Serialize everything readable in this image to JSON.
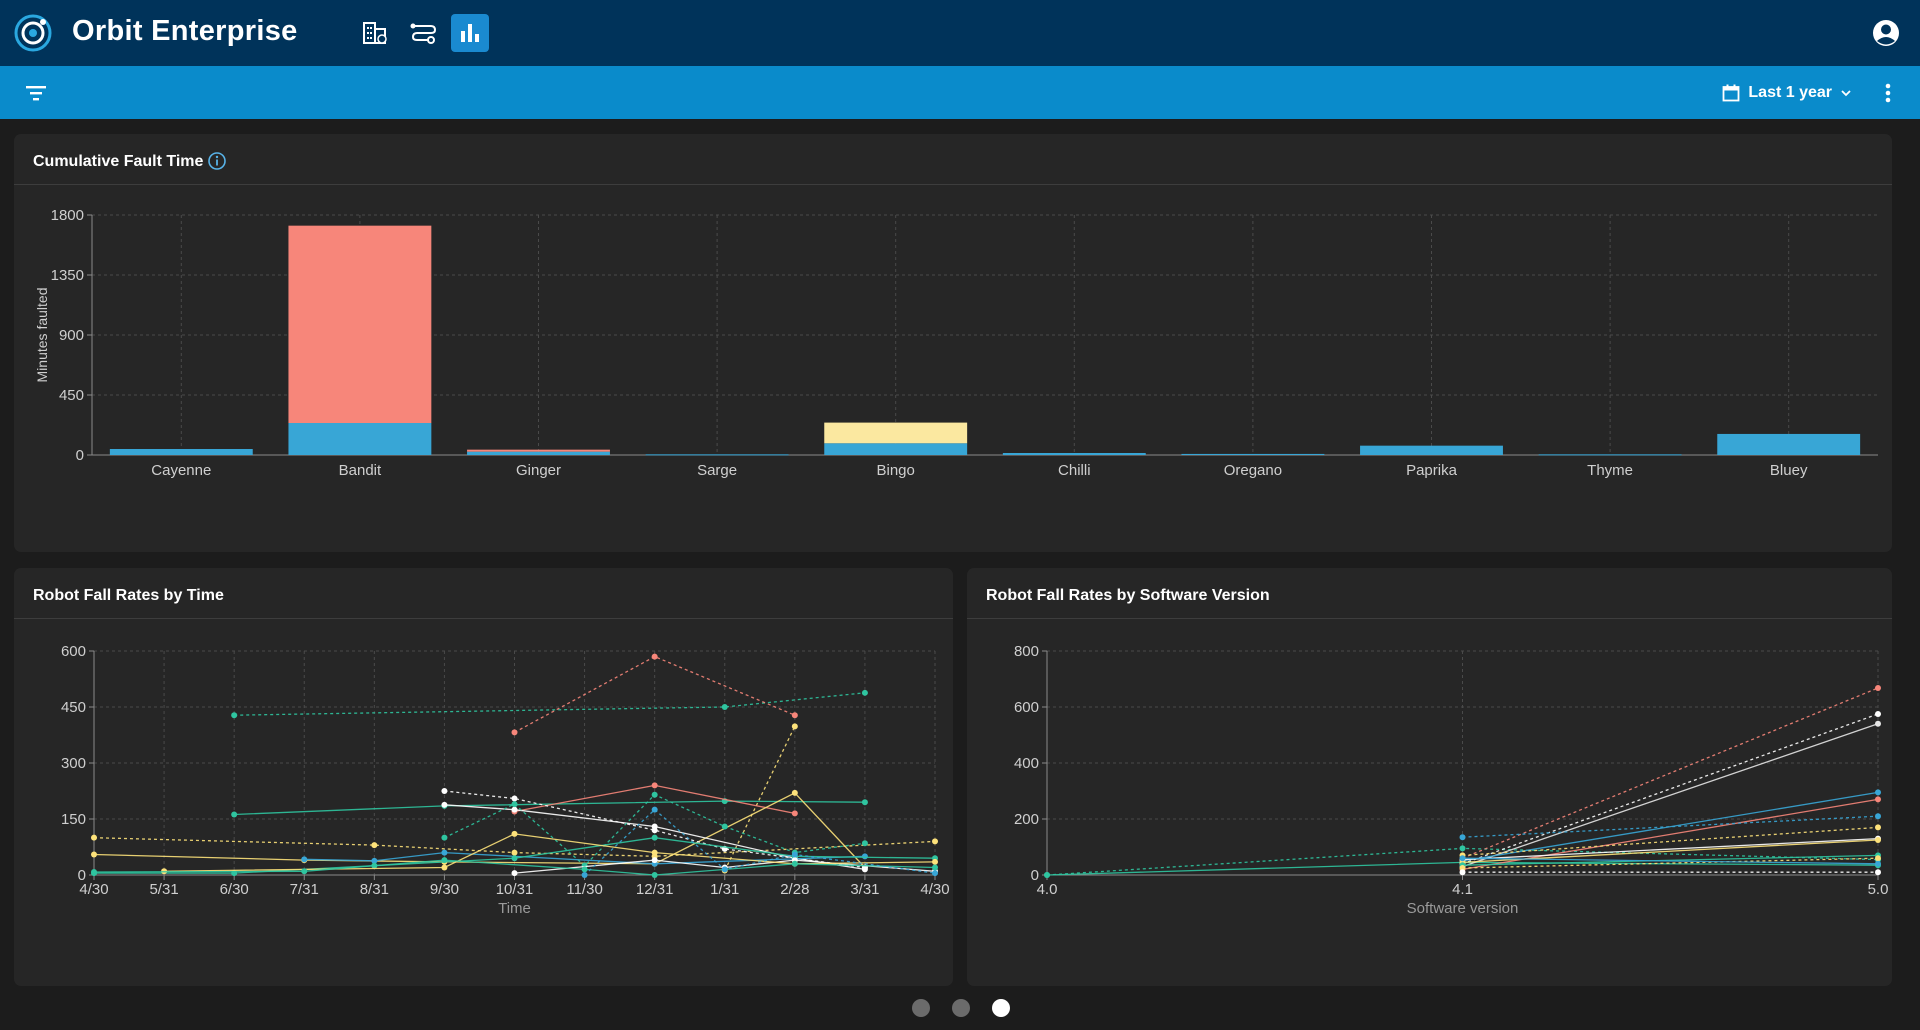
{
  "header": {
    "app_title": "Orbit Enterprise"
  },
  "toolbar": {
    "date_range": "Last 1 year"
  },
  "icons": {
    "logo": "orbit-logo-icon",
    "nav": [
      "buildings-icon",
      "route-icon",
      "bar-chart-icon"
    ],
    "account": "account-circle-icon",
    "filter": "filter-icon",
    "calendar": "calendar-icon",
    "chevron": "chevron-down-icon",
    "more": "more-vert-icon",
    "info": "info-icon"
  },
  "colors": {
    "header": "#00335a",
    "subbar": "#0a8bcb",
    "active_nav": "#1a8ad0"
  },
  "cards": {
    "fault": {
      "title": "Cumulative Fault Time"
    },
    "fall_time": {
      "title": "Robot Fall Rates by Time"
    },
    "fall_version": {
      "title": "Robot Fall Rates by Software Version"
    }
  },
  "pagination": {
    "pages": 3,
    "active": 3
  },
  "chart_data": [
    {
      "type": "bar",
      "stacked": true,
      "title": "Cumulative Fault Time",
      "xlabel": "",
      "ylabel": "Minutes faulted",
      "ylim": [
        0,
        1800
      ],
      "yticks": [
        0,
        450,
        900,
        1350,
        1800
      ],
      "grid": true,
      "categories": [
        "Cayenne",
        "Bandit",
        "Ginger",
        "Sarge",
        "Bingo",
        "Chilli",
        "Oregano",
        "Paprika",
        "Thyme",
        "Bluey"
      ],
      "series": [
        {
          "color": "#38a6d6",
          "values": [
            45,
            240,
            25,
            5,
            88,
            15,
            8,
            70,
            5,
            158
          ]
        },
        {
          "color": "#f7867a",
          "values": [
            0,
            1480,
            15,
            0,
            0,
            0,
            0,
            0,
            0,
            0
          ]
        },
        {
          "color": "#fbe8a0",
          "values": [
            0,
            0,
            0,
            0,
            155,
            0,
            0,
            0,
            0,
            0
          ]
        }
      ]
    },
    {
      "type": "line",
      "title": "Robot Fall Rates by Time",
      "xlabel": "Time",
      "ylabel": "",
      "x": [
        "4/30",
        "5/31",
        "6/30",
        "7/31",
        "8/31",
        "9/30",
        "10/31",
        "11/30",
        "12/31",
        "1/31",
        "2/28",
        "3/31",
        "4/30"
      ],
      "ylim": [
        0,
        600
      ],
      "yticks": [
        0,
        150,
        300,
        450,
        600
      ],
      "grid": true,
      "series": [
        {
          "color": "#2fc5a0",
          "dashed": true,
          "points": [
            [
              2,
              428
            ],
            [
              9,
              450
            ],
            [
              11,
              488
            ]
          ]
        },
        {
          "color": "#f7867a",
          "dashed": true,
          "points": [
            [
              6,
              382
            ],
            [
              8,
              585
            ],
            [
              10,
              428
            ]
          ]
        },
        {
          "color": "#fde27a",
          "dashed": true,
          "points": [
            [
              9,
              12
            ],
            [
              10,
              398
            ]
          ]
        },
        {
          "color": "#2fc5a0",
          "dashed": false,
          "points": [
            [
              2,
              162
            ],
            [
              5,
              185
            ],
            [
              9,
              198
            ],
            [
              11,
              195
            ]
          ]
        },
        {
          "color": "#f7867a",
          "dashed": false,
          "points": [
            [
              6,
              170
            ],
            [
              8,
              240
            ],
            [
              10,
              165
            ]
          ]
        },
        {
          "color": "#fde27a",
          "dashed": false,
          "points": [
            [
              0,
              55
            ],
            [
              3,
              40
            ],
            [
              5,
              35
            ],
            [
              8,
              30
            ],
            [
              10,
              220
            ],
            [
              11,
              20
            ]
          ]
        },
        {
          "color": "#fde27a",
          "dashed": true,
          "points": [
            [
              0,
              100
            ],
            [
              4,
              80
            ],
            [
              6,
              60
            ],
            [
              8,
              50
            ],
            [
              12,
              90
            ]
          ]
        },
        {
          "color": "#ffffff",
          "dashed": true,
          "points": [
            [
              5,
              225
            ],
            [
              6,
              205
            ],
            [
              8,
              120
            ],
            [
              9,
              70
            ],
            [
              11,
              20
            ]
          ]
        },
        {
          "color": "#ffffff",
          "dashed": false,
          "points": [
            [
              5,
              188
            ],
            [
              6,
              175
            ],
            [
              8,
              130
            ],
            [
              10,
              45
            ],
            [
              11,
              15
            ]
          ]
        },
        {
          "color": "#38a6d6",
          "dashed": false,
          "points": [
            [
              3,
              42
            ],
            [
              4,
              38
            ],
            [
              5,
              60
            ],
            [
              8,
              30
            ],
            [
              11,
              50
            ]
          ]
        },
        {
          "color": "#2fc5a0",
          "dashed": false,
          "points": [
            [
              0,
              5
            ],
            [
              2,
              5
            ],
            [
              4,
              25
            ],
            [
              6,
              45
            ],
            [
              8,
              100
            ],
            [
              10,
              50
            ],
            [
              12,
              45
            ]
          ]
        },
        {
          "color": "#2fc5a0",
          "dashed": true,
          "points": [
            [
              5,
              100
            ],
            [
              6,
              190
            ],
            [
              7,
              25
            ],
            [
              8,
              215
            ],
            [
              9,
              130
            ],
            [
              10,
              60
            ],
            [
              11,
              85
            ]
          ]
        },
        {
          "color": "#ffffff",
          "dashed": false,
          "points": [
            [
              6,
              5
            ],
            [
              8,
              40
            ],
            [
              9,
              20
            ],
            [
              10,
              40
            ],
            [
              12,
              10
            ]
          ]
        },
        {
          "color": "#fde27a",
          "dashed": false,
          "points": [
            [
              1,
              10
            ],
            [
              5,
              20
            ],
            [
              6,
              110
            ],
            [
              8,
              60
            ],
            [
              10,
              30
            ],
            [
              12,
              35
            ]
          ]
        },
        {
          "color": "#2fc5a0",
          "dashed": false,
          "points": [
            [
              0,
              8
            ],
            [
              3,
              10
            ],
            [
              5,
              40
            ],
            [
              7,
              15
            ],
            [
              8,
              0
            ],
            [
              10,
              30
            ],
            [
              12,
              20
            ]
          ]
        },
        {
          "color": "#38a6d6",
          "dashed": true,
          "points": [
            [
              7,
              0
            ],
            [
              8,
              175
            ],
            [
              9,
              15
            ],
            [
              10,
              55
            ],
            [
              12,
              5
            ]
          ]
        }
      ]
    },
    {
      "type": "line",
      "title": "Robot Fall Rates by Software Version",
      "xlabel": "Software version",
      "ylabel": "",
      "x": [
        "4.0",
        "4.1",
        "5.0"
      ],
      "ylim": [
        0,
        800
      ],
      "yticks": [
        0,
        200,
        400,
        600,
        800
      ],
      "grid": true,
      "series": [
        {
          "color": "#2fc5a0",
          "dashed": false,
          "points": [
            [
              0,
              0
            ],
            [
              1,
              45
            ],
            [
              2,
              35
            ]
          ]
        },
        {
          "color": "#2fc5a0",
          "dashed": true,
          "points": [
            [
              0,
              0
            ],
            [
              1,
              95
            ],
            [
              2,
              55
            ]
          ]
        },
        {
          "color": "#f7867a",
          "dashed": true,
          "points": [
            [
              1,
              60
            ],
            [
              2,
              668
            ]
          ]
        },
        {
          "color": "#ffffff",
          "dashed": true,
          "points": [
            [
              1,
              40
            ],
            [
              2,
              575
            ]
          ]
        },
        {
          "color": "#e6e6e6",
          "dashed": false,
          "points": [
            [
              1,
              30
            ],
            [
              2,
              540
            ]
          ]
        },
        {
          "color": "#38a6d6",
          "dashed": false,
          "points": [
            [
              1,
              50
            ],
            [
              2,
              295
            ]
          ]
        },
        {
          "color": "#f7867a",
          "dashed": false,
          "points": [
            [
              1,
              20
            ],
            [
              2,
              270
            ]
          ]
        },
        {
          "color": "#38a6d6",
          "dashed": true,
          "points": [
            [
              1,
              135
            ],
            [
              2,
              210
            ]
          ]
        },
        {
          "color": "#fde27a",
          "dashed": true,
          "points": [
            [
              1,
              70
            ],
            [
              2,
              170
            ]
          ]
        },
        {
          "color": "#ffffff",
          "dashed": false,
          "points": [
            [
              1,
              55
            ],
            [
              2,
              130
            ]
          ]
        },
        {
          "color": "#fde27a",
          "dashed": false,
          "points": [
            [
              1,
              45
            ],
            [
              2,
              125
            ]
          ]
        },
        {
          "color": "#2fc5a0",
          "dashed": false,
          "points": [
            [
              1,
              35
            ],
            [
              2,
              70
            ]
          ]
        },
        {
          "color": "#fde27a",
          "dashed": true,
          "points": [
            [
              1,
              25
            ],
            [
              2,
              60
            ]
          ]
        },
        {
          "color": "#ffffff",
          "dashed": true,
          "points": [
            [
              1,
              10
            ],
            [
              2,
              10
            ]
          ]
        },
        {
          "color": "#38a6d6",
          "dashed": false,
          "points": [
            [
              1,
              60
            ],
            [
              2,
              40
            ]
          ]
        }
      ]
    }
  ]
}
